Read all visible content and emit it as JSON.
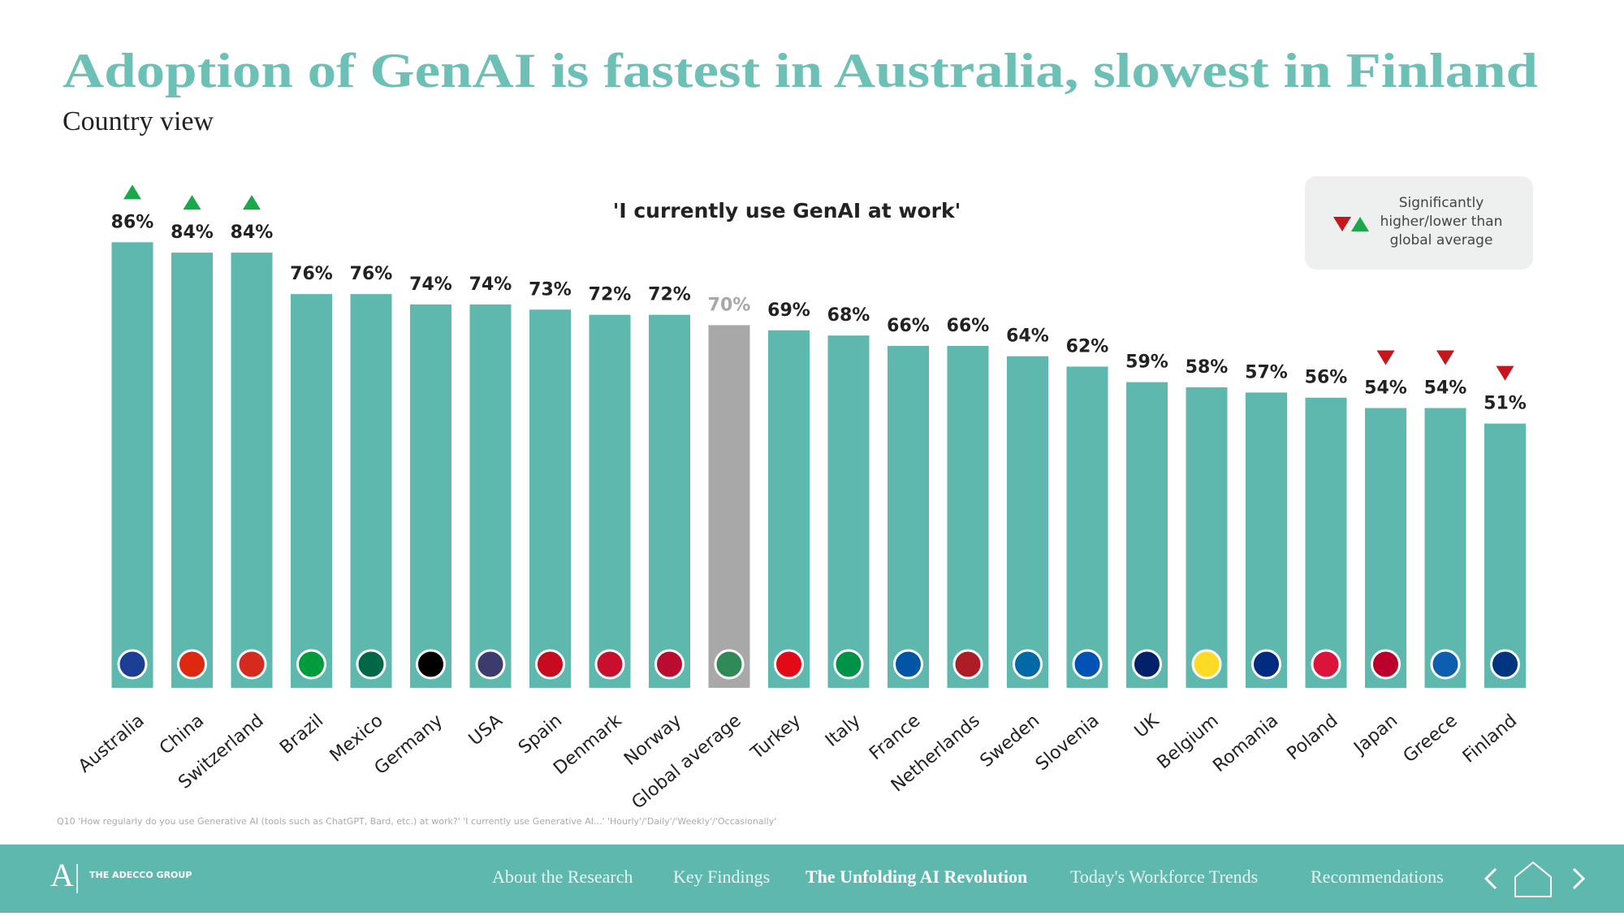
{
  "header": {
    "title": "Adoption of GenAI is fastest in Australia,  slowest in Finland",
    "subtitle": "Country view"
  },
  "chart_data": {
    "type": "bar",
    "title": "'I currently use GenAI at work'",
    "categories": [
      "Australia",
      "China",
      "Switzerland",
      "Brazil",
      "Mexico",
      "Germany",
      "USA",
      "Spain",
      "Denmark",
      "Norway",
      "Global average",
      "Turkey",
      "Italy",
      "France",
      "Netherlands",
      "Sweden",
      "Slovenia",
      "UK",
      "Belgium",
      "Romania",
      "Poland",
      "Japan",
      "Greece",
      "Finland"
    ],
    "values": [
      86,
      84,
      84,
      76,
      76,
      74,
      74,
      73,
      72,
      72,
      70,
      69,
      68,
      66,
      66,
      64,
      62,
      59,
      58,
      57,
      56,
      54,
      54,
      51
    ],
    "value_labels": [
      "86%",
      "84%",
      "84%",
      "76%",
      "76%",
      "74%",
      "74%",
      "73%",
      "72%",
      "72%",
      "70%",
      "69%",
      "68%",
      "66%",
      "66%",
      "64%",
      "62%",
      "59%",
      "58%",
      "57%",
      "56%",
      "54%",
      "54%",
      "51%"
    ],
    "colors": [
      "#5fb8ae",
      "#5fb8ae",
      "#5fb8ae",
      "#5fb8ae",
      "#5fb8ae",
      "#5fb8ae",
      "#5fb8ae",
      "#5fb8ae",
      "#5fb8ae",
      "#5fb8ae",
      "#a9a8a9",
      "#5fb8ae",
      "#5fb8ae",
      "#5fb8ae",
      "#5fb8ae",
      "#5fb8ae",
      "#5fb8ae",
      "#5fb8ae",
      "#5fb8ae",
      "#5fb8ae",
      "#5fb8ae",
      "#5fb8ae",
      "#5fb8ae",
      "#5fb8ae"
    ],
    "significance": [
      "higher",
      "higher",
      "higher",
      null,
      null,
      null,
      null,
      null,
      null,
      null,
      null,
      null,
      null,
      null,
      null,
      null,
      null,
      null,
      null,
      null,
      null,
      "lower",
      "lower",
      "lower"
    ],
    "higher_color": "#1aa84a",
    "lower_color": "#c4161c",
    "ylim": [
      0,
      100
    ],
    "legend": [
      "Significantly",
      "higher/lower than",
      "global average"
    ]
  },
  "footnote": "Q10 'How regularly do you use Generative AI (tools such as ChatGPT, Bard, etc.) at work?' 'I currently use Generative AI...' 'Hourly'/'Daily'/'Weekly'/'Occasionally'",
  "nav": {
    "brand": "THE ADECCO GROUP",
    "items": [
      "About the Research",
      "Key Findings",
      "The Unfolding AI Revolution",
      "Today's Workforce Trends",
      "Recommendations"
    ]
  }
}
